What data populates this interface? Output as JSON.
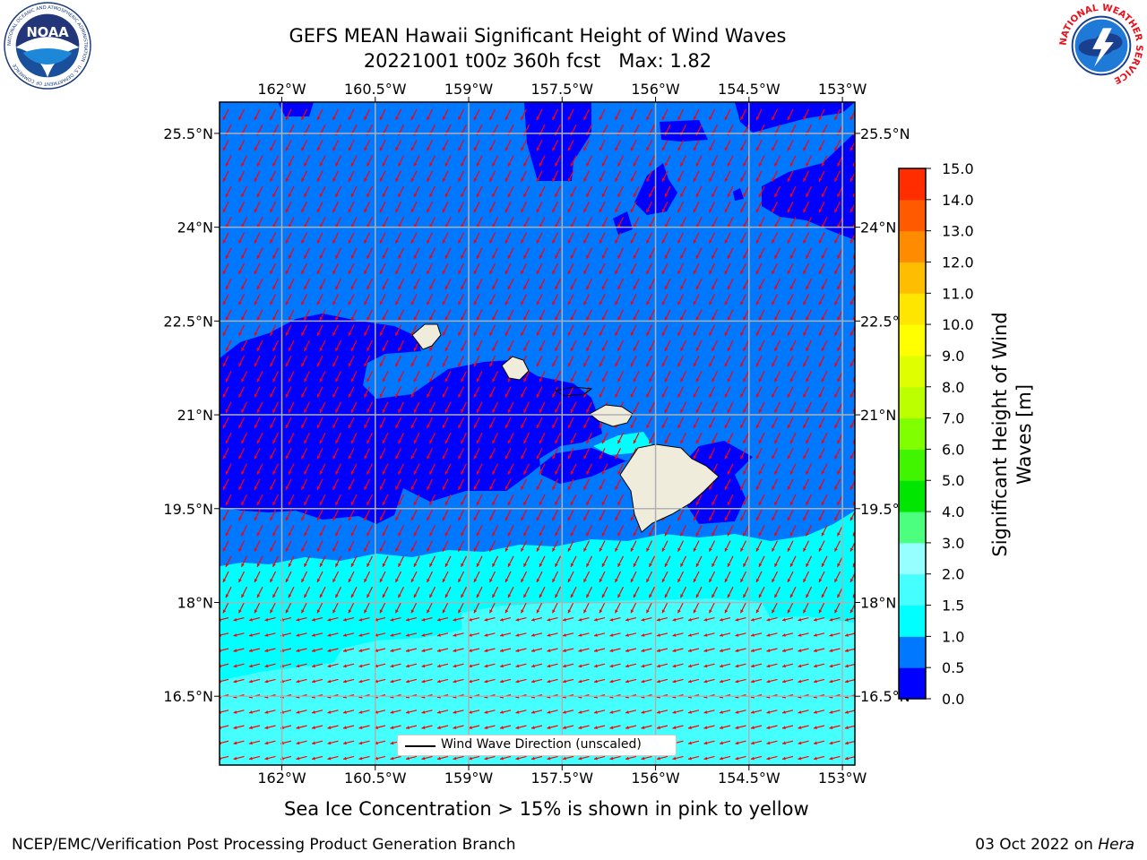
{
  "title": {
    "line1": "GEFS MEAN Hawaii Significant Height of Wind Waves",
    "line2": "20221001 t00z 360h fcst   Max: 1.82"
  },
  "logos": {
    "noaa": {
      "text": "NOAA",
      "ring_text": "NATIONAL OCEANIC AND ATMOSPHERIC ADMINISTRATION · U.S. DEPARTMENT OF COMMERCE",
      "icon": "noaa-logo-icon"
    },
    "nws": {
      "ring_text": "NATIONAL WEATHER SERVICE",
      "icon": "nws-logo-icon"
    }
  },
  "colors": {
    "land": "#efecdc",
    "arrows": "#ff0000",
    "grid": "#b0b0b0",
    "ocean_shallow": "#0000ff",
    "ocean_mid": "#0078ff",
    "ocean_high": "#00ffff",
    "ocean_higher": "#45ffff"
  },
  "chart_data": {
    "type": "heatmap",
    "title": "GEFS MEAN Hawaii Significant Height of Wind Waves",
    "subtitle": "20221001 t00z 360h fcst   Max: 1.82",
    "max_value": 1.82,
    "x_ticks": [
      "162°W",
      "160.5°W",
      "159°W",
      "157.5°W",
      "156°W",
      "154.5°W",
      "153°W"
    ],
    "x_tick_values": [
      -162,
      -160.5,
      -159,
      -157.5,
      -156,
      -154.5,
      -153
    ],
    "y_ticks": [
      "25.5°N",
      "24°N",
      "22.5°N",
      "21°N",
      "19.5°N",
      "18°N",
      "16.5°N"
    ],
    "y_tick_values": [
      25.5,
      24,
      22.5,
      21,
      19.5,
      18,
      16.5
    ],
    "xlim": [
      -163,
      -152.8
    ],
    "ylim": [
      15.4,
      26
    ],
    "grid": true,
    "legend_label": "Wind Wave Direction (unscaled)",
    "legend_position": "bottom-center",
    "colorbar": {
      "label": "Significant Height of Wind Waves [m]",
      "label_lines": [
        "Significant Height of Wind",
        "Waves [m]"
      ],
      "tick_labels": [
        "0.0",
        "0.5",
        "1.0",
        "1.5",
        "2.0",
        "3.0",
        "4.0",
        "5.0",
        "6.0",
        "7.0",
        "8.0",
        "9.0",
        "10.0",
        "11.0",
        "12.0",
        "13.0",
        "14.0",
        "15.0"
      ],
      "colors": [
        "#0000ff",
        "#0078ff",
        "#00ffff",
        "#45ffff",
        "#96ffff",
        "#4cff7e",
        "#00e600",
        "#41f400",
        "#7fff00",
        "#bcff00",
        "#dfff00",
        "#ffff00",
        "#ffe600",
        "#ffbd00",
        "#ff8c00",
        "#ff5a00",
        "#ff2d00",
        "#ff0000"
      ]
    },
    "regions": [
      {
        "name": "base",
        "height_range": [
          0.5,
          1.0
        ]
      },
      {
        "name": "west-of-kauai",
        "height_range": [
          0.0,
          0.5
        ]
      },
      {
        "name": "kaieie-channel",
        "height_range": [
          0.0,
          0.5
        ]
      },
      {
        "name": "northeast-pocket",
        "height_range": [
          0.0,
          0.5
        ]
      },
      {
        "name": "southern-band",
        "height_range": [
          1.0,
          1.5
        ]
      },
      {
        "name": "far-south-band",
        "height_range": [
          1.5,
          2.0
        ]
      }
    ],
    "wind_wave_direction": {
      "north_of_18N": "toward south-southwest",
      "south_of_18N": "toward west-southwest"
    },
    "islands": [
      "Kauai",
      "Oahu",
      "Molokai",
      "Maui",
      "Hawaii"
    ]
  },
  "footnote": "Sea Ice Concentration > 15% is shown in pink to yellow",
  "credits": {
    "left": "NCEP/EMC/Verification Post Processing Product Generation Branch",
    "right_date": "03 Oct 2022 on ",
    "right_host": "Hera"
  }
}
